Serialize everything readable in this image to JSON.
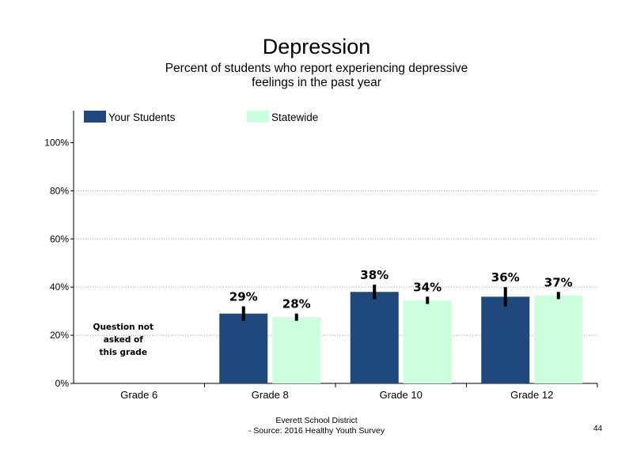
{
  "slide": {
    "footer_line1": "Everett School District",
    "footer_line2": "- Source: 2016 Healthy  Youth Survey",
    "page_number": "44"
  },
  "chart_data": {
    "type": "bar",
    "title": "Depression",
    "subtitle": "Percent of students who report experiencing depressive feelings in the past year",
    "xlabel": "",
    "ylabel": "",
    "ylim": [
      0,
      110
    ],
    "yticks": [
      0,
      20,
      40,
      60,
      80,
      100
    ],
    "ytick_labels": [
      "0%",
      "20%",
      "40%",
      "60%",
      "80%",
      "100%"
    ],
    "grid": "horizontal dotted",
    "legend_position": "top",
    "categories": [
      "Grade 6",
      "Grade 8",
      "Grade 10",
      "Grade 12"
    ],
    "series": [
      {
        "name": "Your Students",
        "color": "#1F497D",
        "values": [
          null,
          29,
          38,
          36
        ],
        "labels": [
          "",
          "29%",
          "38%",
          "36%"
        ],
        "error": [
          null,
          [
            26,
            32
          ],
          [
            35,
            41
          ],
          [
            32,
            40
          ]
        ]
      },
      {
        "name": "Statewide",
        "color": "#CCFFDD",
        "values": [
          null,
          27.5,
          34.5,
          36.5
        ],
        "labels": [
          "",
          "28%",
          "34%",
          "37%"
        ],
        "error": [
          null,
          [
            26,
            29
          ],
          [
            33,
            36
          ],
          [
            35,
            38
          ]
        ]
      }
    ],
    "annotations": [
      {
        "category": "Grade 6",
        "text_lines": [
          "Question not",
          "asked of",
          "this grade"
        ]
      }
    ]
  }
}
